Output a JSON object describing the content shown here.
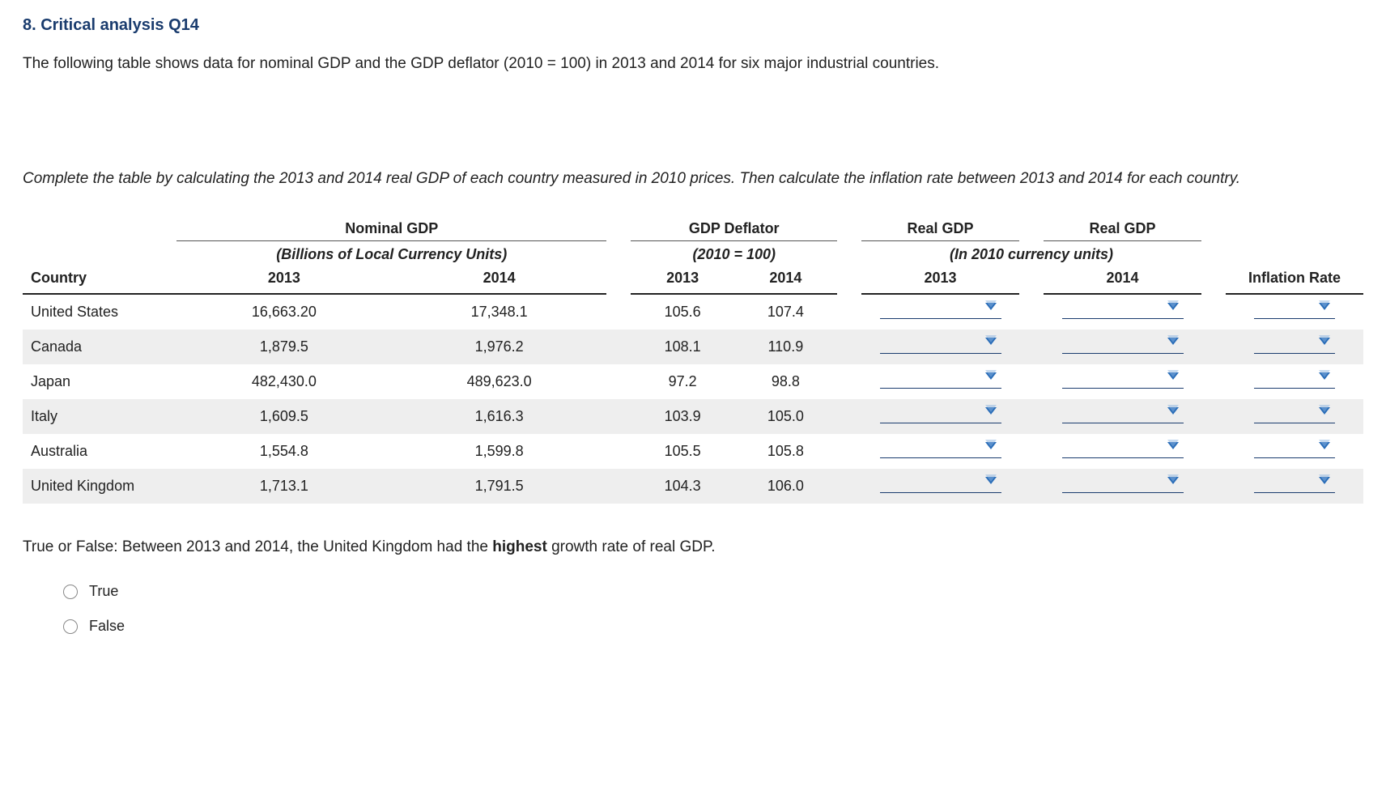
{
  "heading": "8. Critical analysis Q14",
  "intro": "The following table shows data for nominal GDP and the GDP deflator (2010 = 100) in 2013 and 2014 for six major industrial countries.",
  "instruction": "Complete the table by calculating the 2013 and 2014 real GDP of each country measured in 2010 prices. Then calculate the inflation rate between 2013 and 2014 for each country.",
  "table": {
    "type": "table",
    "background_color": "#ffffff",
    "stripe_color": "#eeeeee",
    "header_border_color": "#222222",
    "superheaders": {
      "nominal": "Nominal GDP",
      "deflator": "GDP Deflator",
      "real1": "Real GDP",
      "real2": "Real GDP"
    },
    "subheaders": {
      "nominal": "(Billions of Local Currency Units)",
      "deflator": "(2010 = 100)",
      "real": "(In 2010 currency units)"
    },
    "year_headers": {
      "country": "Country",
      "y2013": "2013",
      "y2014": "2014",
      "inflation": "Inflation Rate"
    },
    "rows": [
      {
        "country": "United States",
        "nom2013": "16,663.20",
        "nom2014": "17,348.1",
        "def2013": "105.6",
        "def2014": "107.4"
      },
      {
        "country": "Canada",
        "nom2013": "1,879.5",
        "nom2014": "1,976.2",
        "def2013": "108.1",
        "def2014": "110.9"
      },
      {
        "country": "Japan",
        "nom2013": "482,430.0",
        "nom2014": "489,623.0",
        "def2013": "97.2",
        "def2014": "98.8"
      },
      {
        "country": "Italy",
        "nom2013": "1,609.5",
        "nom2014": "1,616.3",
        "def2013": "103.9",
        "def2014": "105.0"
      },
      {
        "country": "Australia",
        "nom2013": "1,554.8",
        "nom2014": "1,599.8",
        "def2013": "105.5",
        "def2014": "105.8"
      },
      {
        "country": "United Kingdom",
        "nom2013": "1,713.1",
        "nom2014": "1,791.5",
        "def2013": "104.3",
        "def2014": "106.0"
      }
    ],
    "dropdown_color": "#2a6db8",
    "dropdown_underline_color": "#1a3c6e"
  },
  "tf_question": {
    "prefix": "True or False: Between 2013 and 2014, the United Kingdom had the ",
    "bold": "highest",
    "suffix": " growth rate of real GDP.",
    "options": [
      "True",
      "False"
    ]
  },
  "colors": {
    "heading": "#1a3c6e",
    "text": "#222222",
    "background": "#ffffff"
  },
  "fonts": {
    "body_family": "Verdana",
    "body_size_pt": 14,
    "heading_size_pt": 15
  }
}
